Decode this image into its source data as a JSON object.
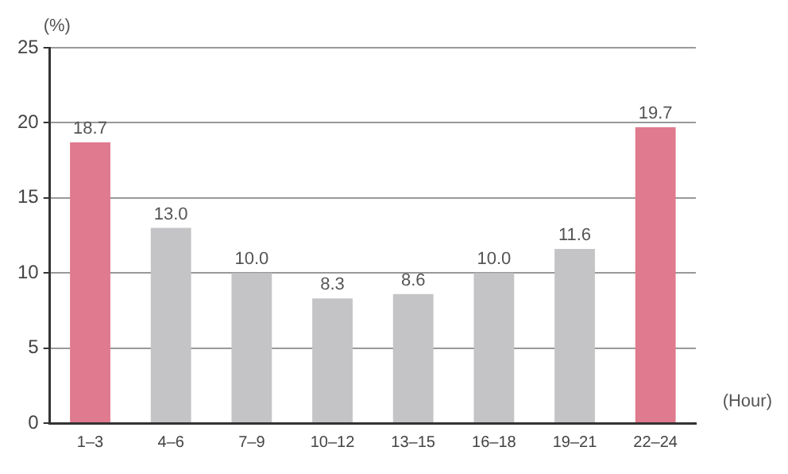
{
  "chart_data": {
    "type": "bar",
    "xlabel": "(Hour)",
    "ylabel": "(%)",
    "categories": [
      "1–3",
      "4–6",
      "7–9",
      "10–12",
      "13–15",
      "16–18",
      "19–21",
      "22–24"
    ],
    "values": [
      18.7,
      13.0,
      10.0,
      8.3,
      8.6,
      10.0,
      11.6,
      19.7
    ],
    "colors": [
      "#e07a8e",
      "#c4c4c6",
      "#c4c4c6",
      "#c4c4c6",
      "#c4c4c6",
      "#c4c4c6",
      "#c4c4c6",
      "#e07a8e"
    ],
    "value_labels": [
      "18.7",
      "13.0",
      "10.0",
      "8.3",
      "8.6",
      "10.0",
      "11.6",
      "19.7"
    ],
    "ylim": [
      0,
      25
    ],
    "yticks": [
      0,
      5,
      10,
      15,
      20,
      25
    ],
    "grid": "y",
    "legend": false
  }
}
